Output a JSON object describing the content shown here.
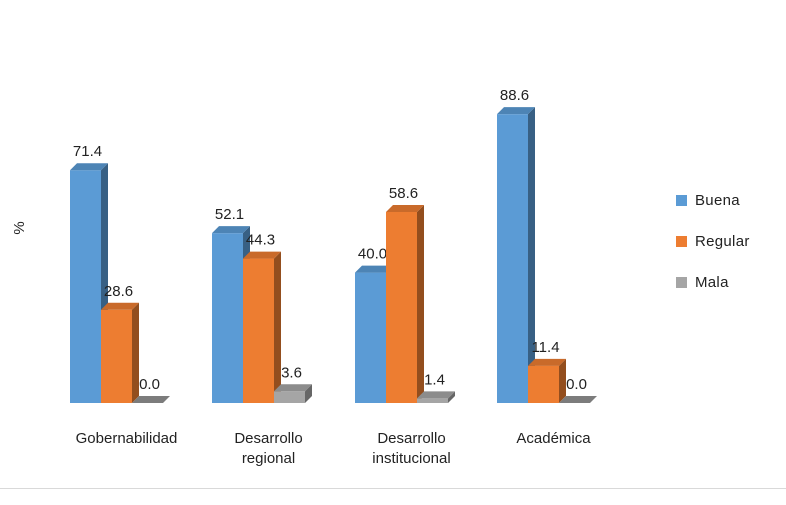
{
  "chart_data": {
    "type": "bar",
    "ylabel": "%",
    "categories": [
      [
        "Gobernabilidad"
      ],
      [
        "Desarrollo",
        "regional"
      ],
      [
        "Desarrollo",
        "institucional"
      ],
      [
        "Académica"
      ]
    ],
    "series": [
      {
        "name": "Buena",
        "color": "#5b9bd5",
        "values": [
          71.4,
          52.1,
          40.0,
          88.6
        ],
        "labels": [
          "71.4",
          "52.1",
          "40.0",
          "88.6"
        ]
      },
      {
        "name": "Regular",
        "color": "#ed7d31",
        "values": [
          28.6,
          44.3,
          58.6,
          11.4
        ],
        "labels": [
          "28.6",
          "44.3",
          "58.6",
          "11.4"
        ]
      },
      {
        "name": "Mala",
        "color": "#a5a5a5",
        "values": [
          0.0,
          3.6,
          1.4,
          0.0
        ],
        "labels": [
          "0.0",
          "3.6",
          "1.4",
          "0.0"
        ]
      }
    ],
    "ylim": [
      0,
      100
    ],
    "grid": false,
    "legend_position": "right",
    "projection": "3d"
  }
}
